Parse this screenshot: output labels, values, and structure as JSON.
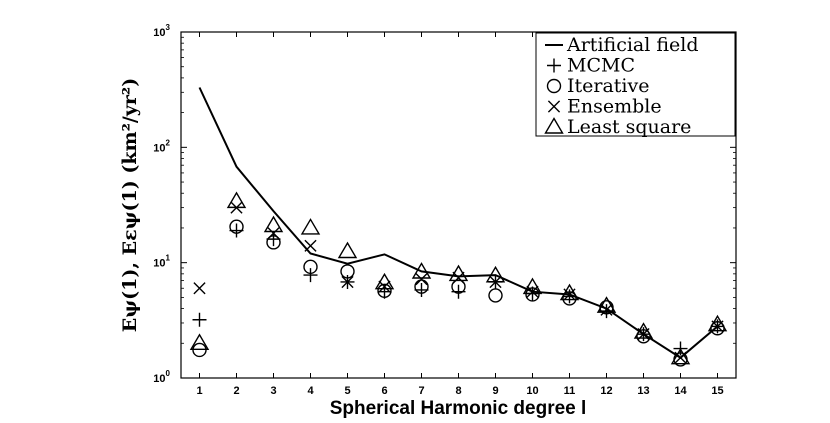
{
  "chart_data": {
    "type": "scatter",
    "xlabel": "Spherical Harmonic degree l",
    "ylabel": "Eψ(1), Eεψ(1) (km²/yr²)",
    "xlim": [
      0.5,
      15.5
    ],
    "ylim": [
      1,
      1000
    ],
    "yscale": "log",
    "x": [
      1,
      2,
      3,
      4,
      5,
      6,
      7,
      8,
      9,
      10,
      11,
      12,
      13,
      14,
      15
    ],
    "x_tick_labels": [
      "1",
      "2",
      "3",
      "4",
      "5",
      "6",
      "7",
      "8",
      "9",
      "10",
      "11",
      "12",
      "13",
      "14",
      "15"
    ],
    "y_tick_labels": [
      {
        "base": "10",
        "exp": "0",
        "value": 1
      },
      {
        "base": "10",
        "exp": "1",
        "value": 10
      },
      {
        "base": "10",
        "exp": "2",
        "value": 100
      },
      {
        "base": "10",
        "exp": "3",
        "value": 1000
      }
    ],
    "grid": false,
    "legend_position": "top-right",
    "series": [
      {
        "name": "Artificial field",
        "marker": "line",
        "values": [
          330,
          68,
          28,
          12,
          9.8,
          11.8,
          8.4,
          7.6,
          7.8,
          5.6,
          5.3,
          4,
          2.4,
          1.5,
          2.8
        ]
      },
      {
        "name": "MCMC",
        "marker": "plus",
        "values": [
          3.2,
          19,
          16,
          7.8,
          6.8,
          5.6,
          5.8,
          5.6,
          6.8,
          5.4,
          5.1,
          3.8,
          2.4,
          1.8,
          2.8
        ]
      },
      {
        "name": "Iterative",
        "marker": "circle",
        "values": [
          1.75,
          20.5,
          15,
          9.2,
          8.4,
          5.7,
          6.2,
          6.2,
          5.2,
          5.3,
          4.9,
          4.1,
          2.3,
          1.45,
          2.7
        ]
      },
      {
        "name": "Ensemble",
        "marker": "x",
        "values": [
          6,
          30,
          18,
          14,
          6.8,
          6.2,
          7.2,
          7.4,
          6.8,
          5.6,
          5.3,
          3.9,
          2.4,
          1.5,
          2.8
        ]
      },
      {
        "name": "Least square",
        "marker": "triangle",
        "values": [
          2,
          34,
          21,
          20,
          12.5,
          6.7,
          8.3,
          7.9,
          7.7,
          6.1,
          5.4,
          4.2,
          2.5,
          1.5,
          2.9
        ]
      }
    ]
  }
}
